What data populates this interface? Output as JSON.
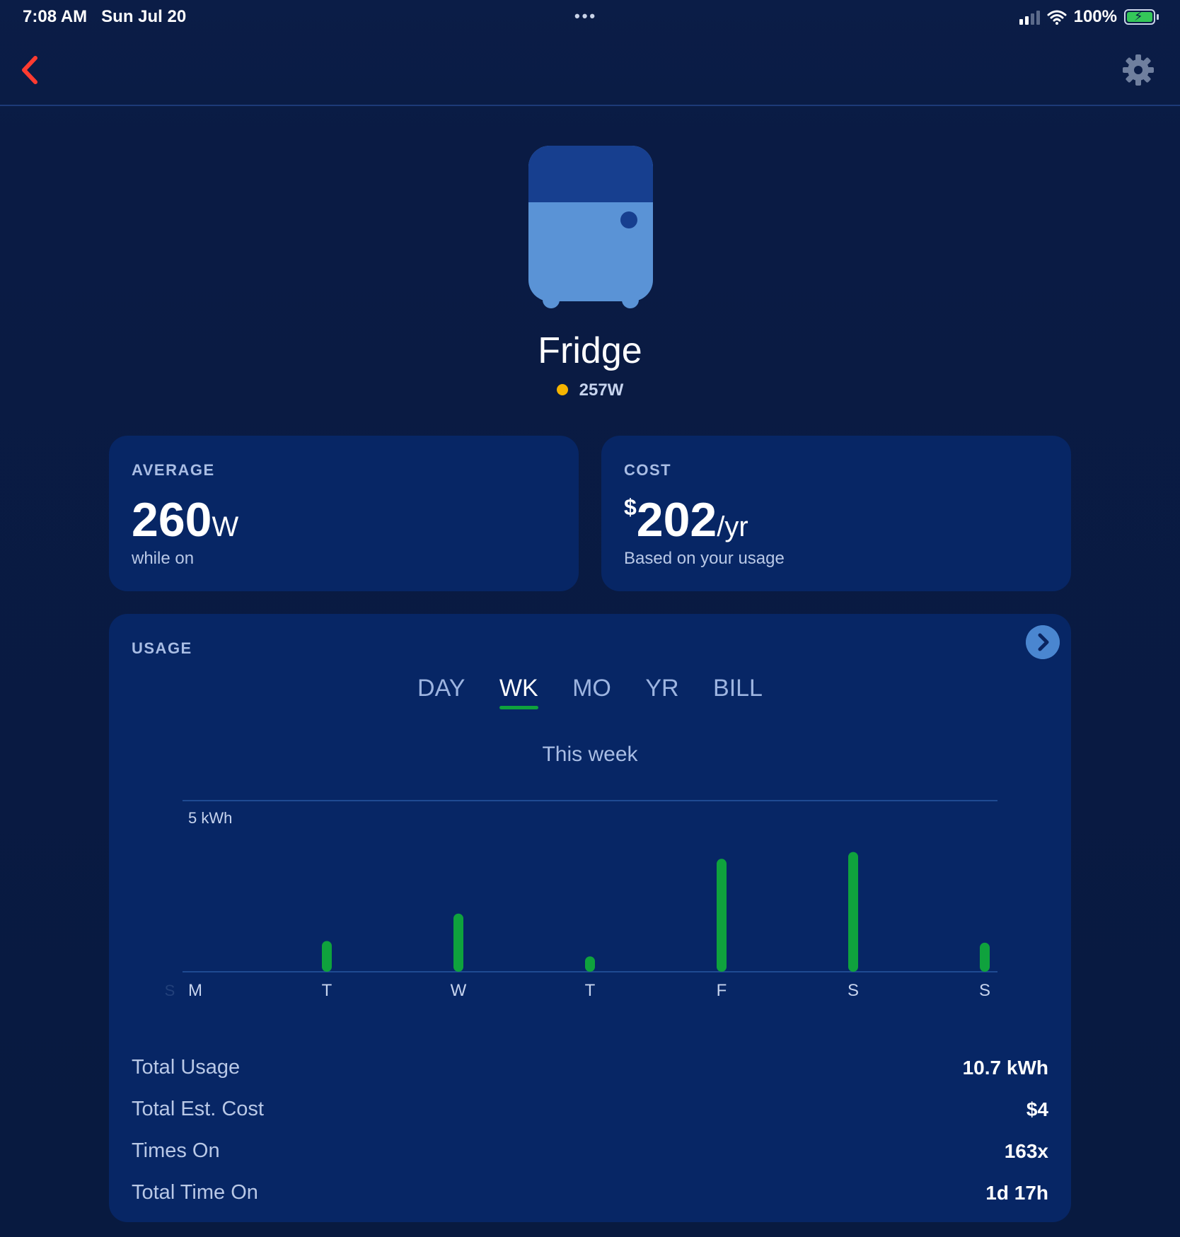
{
  "status_bar": {
    "time": "7:08 AM",
    "date": "Sun Jul 20",
    "dots": "•••",
    "battery": "100%"
  },
  "nav": {
    "back_icon": "chevron-left-icon",
    "settings_icon": "gear-icon"
  },
  "device": {
    "name": "Fridge",
    "live_power": "257W",
    "live_color": "#f5b400"
  },
  "average": {
    "label": "AVERAGE",
    "value": "260",
    "unit": "W",
    "sub": "while on"
  },
  "cost": {
    "label": "COST",
    "currency": "$",
    "value": "202",
    "unit": "/yr",
    "sub": "Based on your usage"
  },
  "usage": {
    "label": "USAGE",
    "tabs": [
      {
        "label": "DAY",
        "active": false
      },
      {
        "label": "WK",
        "active": true
      },
      {
        "label": "MO",
        "active": false
      },
      {
        "label": "YR",
        "active": false
      },
      {
        "label": "BILL",
        "active": false
      }
    ],
    "period_title": "This week",
    "stats": [
      {
        "label": "Total Usage",
        "value": "10.7 kWh"
      },
      {
        "label": "Total Est. Cost",
        "value": "$4"
      },
      {
        "label": "Times On",
        "value": "163x"
      },
      {
        "label": "Total Time On",
        "value": "1d 17h"
      }
    ]
  },
  "chart_data": {
    "type": "bar",
    "ref_label": "5 kWh",
    "leading_label": "S",
    "categories": [
      "M",
      "T",
      "W",
      "T",
      "F",
      "S",
      "S"
    ],
    "values": [
      0,
      0.9,
      1.7,
      0.45,
      3.3,
      3.5,
      0.85
    ],
    "ylim": [
      0,
      5
    ],
    "bar_color": "#0fa23d",
    "accent": "#4a86d0"
  }
}
